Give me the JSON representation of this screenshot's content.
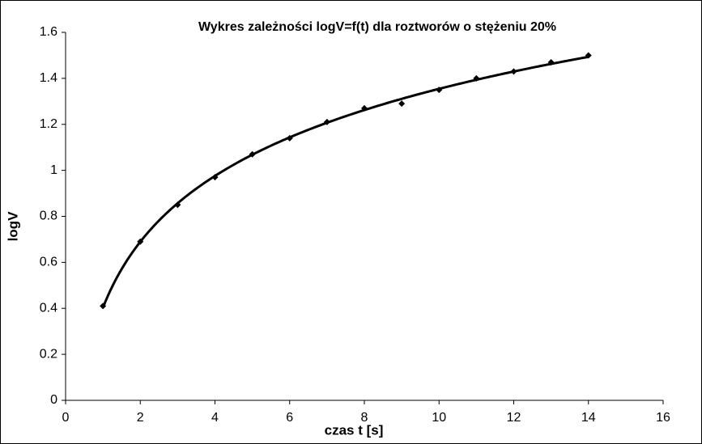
{
  "chart_data": {
    "type": "scatter",
    "title": "Wykres zależności logV=f(t) dla roztworów o stężeniu 20%",
    "x_label": "czas t [s]",
    "y_label": "logV",
    "series": [
      {
        "name": "logV",
        "color": "#000000",
        "x": [
          1,
          2,
          3,
          4,
          5,
          6,
          7,
          8,
          9,
          10,
          11,
          12,
          13,
          14
        ],
        "values": [
          0.41,
          0.69,
          0.85,
          0.97,
          1.07,
          1.14,
          1.21,
          1.27,
          1.29,
          1.35,
          1.4,
          1.43,
          1.47,
          1.5
        ]
      }
    ],
    "trendline": "logarithmic",
    "xlim": [
      0,
      16
    ],
    "xticks": [
      0,
      2,
      4,
      6,
      8,
      10,
      12,
      14,
      16
    ],
    "ylim": [
      0,
      1.6
    ],
    "yticks": [
      0,
      0.2,
      0.4,
      0.6,
      0.8,
      1,
      1.2,
      1.4,
      1.6
    ],
    "grid": false
  }
}
